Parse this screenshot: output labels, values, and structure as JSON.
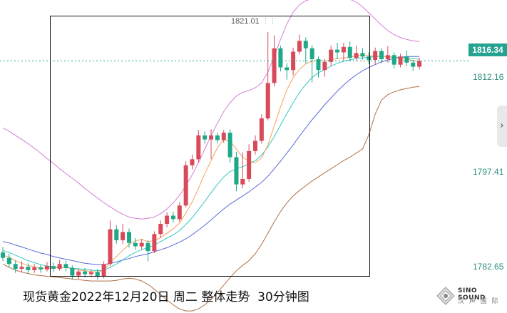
{
  "header": {
    "title": "现货黄金2022年12月20日 周二 整体走势  30分钟图",
    "peak_value": "1821.01",
    "current_price": "1816.34",
    "brand_name": "SINO SOUND",
    "brand_subtitle": "汉 声 国 际"
  },
  "chart_data": {
    "type": "candlestick",
    "title": "现货黄金2022年12月20日 周二 整体走势  30分钟图",
    "y_ticks": [
      "1812.16",
      "1797.41",
      "1782.65"
    ],
    "ylim": [
      1779.3,
      1825.3
    ],
    "current_price": 1816.34,
    "peak": 1821.01,
    "colors": {
      "up": "#d84a5a",
      "down": "#1fa888",
      "ma_short": "#f2a25a",
      "ma_mid": "#35c8c2",
      "ma_long": "#5a6ad8",
      "band_upper": "#d67fd4",
      "band_lower": "#b07046"
    },
    "candles": [
      [
        1788.2,
        1787.4,
        1789.0,
        1786.9
      ],
      [
        1787.4,
        1786.5,
        1788.0,
        1786.0
      ],
      [
        1786.5,
        1785.8,
        1787.0,
        1785.2
      ],
      [
        1785.8,
        1786.1,
        1786.9,
        1785.3
      ],
      [
        1786.1,
        1785.6,
        1786.6,
        1785.0
      ],
      [
        1785.6,
        1786.0,
        1786.5,
        1785.2
      ],
      [
        1786.0,
        1785.7,
        1786.4,
        1785.2
      ],
      [
        1785.7,
        1786.2,
        1786.8,
        1785.4
      ],
      [
        1786.2,
        1785.8,
        1786.7,
        1785.3
      ],
      [
        1785.8,
        1786.5,
        1787.1,
        1785.5
      ],
      [
        1786.5,
        1785.9,
        1787.0,
        1785.4
      ],
      [
        1785.9,
        1784.8,
        1786.3,
        1784.2
      ],
      [
        1784.8,
        1785.4,
        1785.8,
        1784.3
      ],
      [
        1785.4,
        1785.0,
        1785.9,
        1784.5
      ],
      [
        1785.0,
        1785.3,
        1785.7,
        1784.6
      ],
      [
        1785.3,
        1784.7,
        1785.8,
        1784.2
      ],
      [
        1784.7,
        1786.5,
        1786.9,
        1784.4
      ],
      [
        1786.5,
        1791.6,
        1792.9,
        1786.2
      ],
      [
        1791.6,
        1790.0,
        1792.2,
        1789.5
      ],
      [
        1790.0,
        1791.2,
        1792.4,
        1789.4
      ],
      [
        1791.2,
        1789.6,
        1791.7,
        1788.9
      ],
      [
        1789.6,
        1789.1,
        1790.3,
        1788.6
      ],
      [
        1789.1,
        1789.6,
        1790.2,
        1788.6
      ],
      [
        1789.6,
        1788.4,
        1790.0,
        1786.9
      ],
      [
        1788.4,
        1790.9,
        1791.3,
        1788.1
      ],
      [
        1790.9,
        1792.4,
        1792.9,
        1790.3
      ],
      [
        1792.4,
        1793.6,
        1794.1,
        1791.9
      ],
      [
        1793.6,
        1793.1,
        1794.2,
        1792.6
      ],
      [
        1793.1,
        1795.1,
        1795.6,
        1792.7
      ],
      [
        1795.1,
        1801.0,
        1801.6,
        1794.8
      ],
      [
        1801.0,
        1801.9,
        1802.6,
        1800.4
      ],
      [
        1801.9,
        1805.4,
        1806.2,
        1801.4
      ],
      [
        1805.4,
        1804.8,
        1806.0,
        1804.2
      ],
      [
        1804.8,
        1805.4,
        1806.3,
        1801.9
      ],
      [
        1805.4,
        1804.7,
        1805.8,
        1804.2
      ],
      [
        1804.7,
        1805.8,
        1806.2,
        1804.3
      ],
      [
        1805.8,
        1802.2,
        1806.3,
        1801.4
      ],
      [
        1802.2,
        1798.2,
        1803.0,
        1797.2
      ],
      [
        1798.2,
        1799.0,
        1802.9,
        1797.6
      ],
      [
        1799.0,
        1803.1,
        1804.1,
        1798.6
      ],
      [
        1803.1,
        1804.6,
        1805.4,
        1802.6
      ],
      [
        1804.6,
        1807.9,
        1808.5,
        1804.2
      ],
      [
        1807.9,
        1813.1,
        1820.6,
        1807.6
      ],
      [
        1813.1,
        1818.2,
        1820.1,
        1812.6
      ],
      [
        1818.2,
        1815.4,
        1818.6,
        1814.8
      ],
      [
        1815.4,
        1815.0,
        1816.0,
        1813.6
      ],
      [
        1815.0,
        1817.7,
        1818.3,
        1814.2
      ],
      [
        1817.7,
        1819.3,
        1820.2,
        1817.3
      ],
      [
        1819.3,
        1818.2,
        1819.8,
        1816.0
      ],
      [
        1818.2,
        1816.6,
        1818.7,
        1813.2
      ],
      [
        1816.6,
        1815.0,
        1817.0,
        1813.9
      ],
      [
        1815.0,
        1816.2,
        1816.6,
        1814.0
      ],
      [
        1816.2,
        1818.0,
        1818.6,
        1815.6
      ],
      [
        1818.0,
        1817.6,
        1819.0,
        1816.6
      ],
      [
        1817.6,
        1818.4,
        1819.0,
        1816.4
      ],
      [
        1818.4,
        1816.8,
        1819.2,
        1816.3
      ],
      [
        1816.8,
        1817.5,
        1818.6,
        1816.4
      ],
      [
        1817.5,
        1817.0,
        1818.2,
        1816.5
      ],
      [
        1817.0,
        1816.5,
        1817.6,
        1815.9
      ],
      [
        1816.5,
        1817.8,
        1818.3,
        1815.8
      ],
      [
        1817.8,
        1816.6,
        1818.2,
        1816.0
      ],
      [
        1816.6,
        1817.2,
        1818.5,
        1816.1
      ],
      [
        1817.2,
        1815.8,
        1817.6,
        1815.2
      ],
      [
        1815.8,
        1817.0,
        1817.4,
        1815.4
      ],
      [
        1817.0,
        1816.1,
        1817.9,
        1815.6
      ],
      [
        1816.1,
        1815.5,
        1816.5,
        1814.9
      ],
      [
        1815.5,
        1816.34,
        1816.8,
        1815.1
      ]
    ],
    "ma_short": [
      1787.8,
      1787.5,
      1787.0,
      1786.6,
      1786.3,
      1786.1,
      1785.9,
      1785.9,
      1785.9,
      1786.0,
      1786.0,
      1785.8,
      1785.6,
      1785.5,
      1785.4,
      1785.3,
      1785.6,
      1786.7,
      1787.6,
      1788.5,
      1789.4,
      1789.9,
      1790.1,
      1789.8,
      1789.9,
      1790.4,
      1791.0,
      1791.7,
      1792.5,
      1794.0,
      1795.6,
      1797.6,
      1799.8,
      1801.7,
      1803.6,
      1804.8,
      1804.6,
      1803.4,
      1802.2,
      1801.6,
      1801.4,
      1802.1,
      1804.0,
      1806.8,
      1809.6,
      1812.1,
      1813.9,
      1815.1,
      1815.9,
      1816.3,
      1816.4,
      1816.3,
      1816.5,
      1816.7,
      1816.8,
      1816.9,
      1817.1,
      1817.2,
      1817.1,
      1817.1,
      1817.0,
      1817.0,
      1816.8,
      1816.7,
      1816.6,
      1816.4,
      1816.3
    ],
    "ma_mid": [
      1788.5,
      1788.2,
      1787.8,
      1787.4,
      1787.0,
      1786.7,
      1786.4,
      1786.2,
      1786.1,
      1786.0,
      1786.0,
      1785.9,
      1785.8,
      1785.7,
      1785.6,
      1785.5,
      1785.6,
      1786.0,
      1786.5,
      1787.1,
      1787.7,
      1788.2,
      1788.6,
      1788.9,
      1789.3,
      1789.8,
      1790.3,
      1790.8,
      1791.4,
      1792.3,
      1793.3,
      1794.5,
      1795.7,
      1797.0,
      1798.2,
      1799.3,
      1800.1,
      1800.5,
      1800.8,
      1801.2,
      1801.7,
      1802.5,
      1803.7,
      1805.2,
      1806.9,
      1808.6,
      1810.2,
      1811.7,
      1812.9,
      1813.9,
      1814.6,
      1815.1,
      1815.6,
      1816.0,
      1816.3,
      1816.5,
      1816.7,
      1816.8,
      1816.9,
      1817.0,
      1817.0,
      1817.0,
      1816.9,
      1816.9,
      1816.8,
      1816.7,
      1816.6
    ],
    "ma_long": [
      1789.8,
      1789.6,
      1789.3,
      1789.0,
      1788.7,
      1788.4,
      1788.1,
      1787.9,
      1787.6,
      1787.4,
      1787.2,
      1787.0,
      1786.8,
      1786.6,
      1786.5,
      1786.4,
      1786.4,
      1786.6,
      1786.8,
      1787.1,
      1787.3,
      1787.6,
      1787.8,
      1788.0,
      1788.3,
      1788.6,
      1788.9,
      1789.3,
      1789.7,
      1790.2,
      1790.8,
      1791.5,
      1792.2,
      1793.0,
      1793.8,
      1794.6,
      1795.3,
      1795.9,
      1796.5,
      1797.1,
      1797.8,
      1798.5,
      1799.4,
      1800.5,
      1801.6,
      1802.8,
      1804.0,
      1805.3,
      1806.5,
      1807.7,
      1808.8,
      1809.9,
      1810.9,
      1811.9,
      1812.8,
      1813.6,
      1814.3,
      1814.9,
      1815.4,
      1815.8,
      1816.2,
      1816.5,
      1816.7,
      1816.9,
      1817.0,
      1817.0,
      1817.0
    ],
    "band_upper": [
      1806.5,
      1806.0,
      1805.4,
      1804.8,
      1804.2,
      1803.5,
      1802.8,
      1802.0,
      1801.3,
      1800.5,
      1799.8,
      1799.1,
      1798.4,
      1797.6,
      1796.9,
      1796.2,
      1795.5,
      1794.9,
      1794.3,
      1793.8,
      1793.4,
      1793.2,
      1793.1,
      1793.2,
      1793.4,
      1793.9,
      1794.6,
      1795.5,
      1796.6,
      1798.0,
      1799.6,
      1801.4,
      1803.4,
      1805.4,
      1807.2,
      1808.9,
      1810.2,
      1811.2,
      1811.7,
      1812.0,
      1812.4,
      1813.1,
      1814.7,
      1817.0,
      1819.5,
      1821.8,
      1823.5,
      1824.6,
      1825.2,
      1825.5,
      1825.6,
      1825.7,
      1825.7,
      1825.7,
      1825.6,
      1825.4,
      1825.0,
      1824.3,
      1823.4,
      1822.5,
      1821.6,
      1820.8,
      1820.2,
      1819.8,
      1819.5,
      1819.3,
      1819.2
    ],
    "band_lower": [
      1786.5,
      1786.0,
      1785.6,
      1785.3,
      1785.1,
      1784.9,
      1784.8,
      1784.7,
      1784.6,
      1784.5,
      1784.4,
      1784.3,
      1784.2,
      1784.1,
      1784.0,
      1784.0,
      1784.0,
      1784.0,
      1784.1,
      1784.3,
      1784.4,
      1784.3,
      1784.0,
      1783.5,
      1782.8,
      1782.0,
      1781.2,
      1780.5,
      1779.9,
      1779.6,
      1779.6,
      1779.9,
      1780.5,
      1781.3,
      1782.3,
      1783.4,
      1784.5,
      1785.5,
      1786.3,
      1787.0,
      1788.0,
      1789.4,
      1791.0,
      1792.7,
      1794.2,
      1795.5,
      1796.5,
      1797.3,
      1798.0,
      1798.7,
      1799.3,
      1799.9,
      1800.5,
      1801.1,
      1801.7,
      1802.2,
      1802.8,
      1803.4,
      1805.5,
      1808.5,
      1810.6,
      1811.4,
      1811.8,
      1812.1,
      1812.3,
      1812.5,
      1812.6
    ]
  }
}
